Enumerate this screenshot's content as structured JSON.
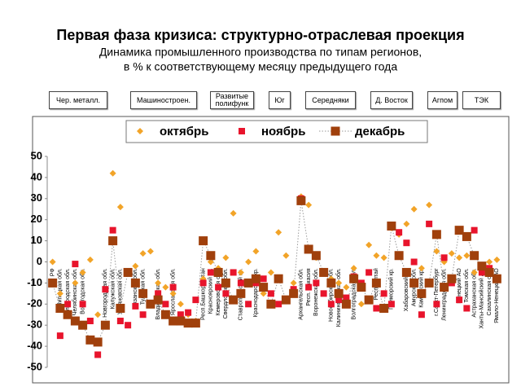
{
  "chart_data": {
    "type": "scatter",
    "title": "Первая фаза кризиса: структурно-отраслевая проекция",
    "subtitle": [
      "Динамика промышленного производства по типам регионов,",
      "в % к соответствующему месяцу предыдущего года"
    ],
    "groups": [
      "Чер. металл.",
      "Машиностроен.",
      "Развитые полифунк",
      "Юг",
      "Середняки",
      "Д. Восток",
      "Агпом",
      "ТЭК"
    ],
    "categories": [
      "РФ",
      "Липецкая обл.",
      "Белгородская обл.",
      "Челябинская обл.",
      "Вологодская обл.",
      null,
      null,
      "Новгородская обл.",
      "Калужская обл.",
      "Ульяновская обл.",
      null,
      "Рязанская обл.",
      "Тульская обл.",
      null,
      "Владимирская обл.",
      null,
      "Ярославская обл.",
      null,
      null,
      null,
      "Респ.Башкортостан",
      "Красноярский кр.",
      "Кемеровская обл.",
      "Свердловская обл.",
      null,
      "Ставропольский кр.",
      null,
      "Краснодарский кр.",
      null,
      null,
      null,
      null,
      null,
      "Архангельская обл.",
      "Респ. Хакасия",
      "Воронежская обл.",
      null,
      "Новосибирская обл.",
      "Калининградская обл.",
      null,
      "Волгоградская обл.",
      null,
      null,
      "Респ. Алтай",
      null,
      "Приморский кр.",
      null,
      "Хабаровский кр.",
      "Амурская обл.",
      "Камчатский кр.",
      null,
      "г.Санкт-Петербург",
      "Ленинградская обл.",
      null,
      "Ненецкий АО",
      "Томская обл.",
      "Астраханская обл.",
      "Ханты-Мансийский АО",
      "Сахалинская обл.",
      "Ямало-Ненецкий АО"
    ],
    "series": [
      {
        "name": "октябрь",
        "color": "#f2a428",
        "marker": "diamond",
        "values": [
          0,
          -15,
          -20,
          -10,
          -5,
          1,
          -25,
          -30,
          42,
          26,
          -5,
          -2,
          4,
          5,
          -10,
          -12,
          -15,
          -20,
          -25,
          -28,
          -8,
          0,
          -3,
          2,
          23,
          -5,
          0,
          5,
          -15,
          -5,
          14,
          3,
          -10,
          31,
          27,
          2,
          -5,
          -8,
          -10,
          -12,
          -3,
          -20,
          8,
          3,
          2,
          16,
          13,
          18,
          25,
          -3,
          27,
          5,
          0,
          4,
          2,
          3,
          -5,
          -2,
          0,
          1
        ]
      },
      {
        "name": "ноябрь",
        "color": "#e8142c",
        "marker": "square",
        "values": [
          -10,
          -35,
          -20,
          -1,
          -20,
          -28,
          -44,
          -13,
          15,
          -28,
          -30,
          -21,
          -25,
          -20,
          -15,
          -20,
          -12,
          -25,
          -24,
          -18,
          -10,
          -5,
          -12,
          -15,
          -5,
          -10,
          -20,
          -10,
          -8,
          -15,
          -20,
          -18,
          -13,
          30,
          -12,
          -10,
          -15,
          -20,
          -18,
          -17,
          -7,
          -10,
          -5,
          -22,
          -15,
          -20,
          14,
          9,
          0,
          -25,
          18,
          -20,
          2,
          -10,
          -18,
          -22,
          15,
          -5,
          -3,
          -8
        ]
      },
      {
        "name": "декабрь",
        "color": "#a0400c",
        "marker": "big-square",
        "line": "dotted",
        "values": [
          -10,
          -22,
          -25,
          -28,
          -30,
          -37,
          -38,
          -30,
          10,
          -22,
          -5,
          -10,
          -15,
          -20,
          -18,
          -25,
          -28,
          -28,
          -29,
          -29,
          10,
          3,
          -5,
          -10,
          -18,
          -15,
          -10,
          -8,
          -12,
          -20,
          -8,
          -18,
          -15,
          29,
          6,
          3,
          -5,
          -10,
          -15,
          -20,
          -8,
          -12,
          -18,
          -10,
          -22,
          17,
          3,
          -5,
          -10,
          -15,
          -10,
          13,
          -12,
          -8,
          15,
          12,
          3,
          -2,
          -5,
          -8
        ]
      }
    ],
    "ylim": [
      -50,
      50
    ],
    "yticks": [
      -50,
      -40,
      -30,
      -20,
      -10,
      0,
      10,
      20,
      30,
      40,
      50
    ],
    "grid": false
  }
}
